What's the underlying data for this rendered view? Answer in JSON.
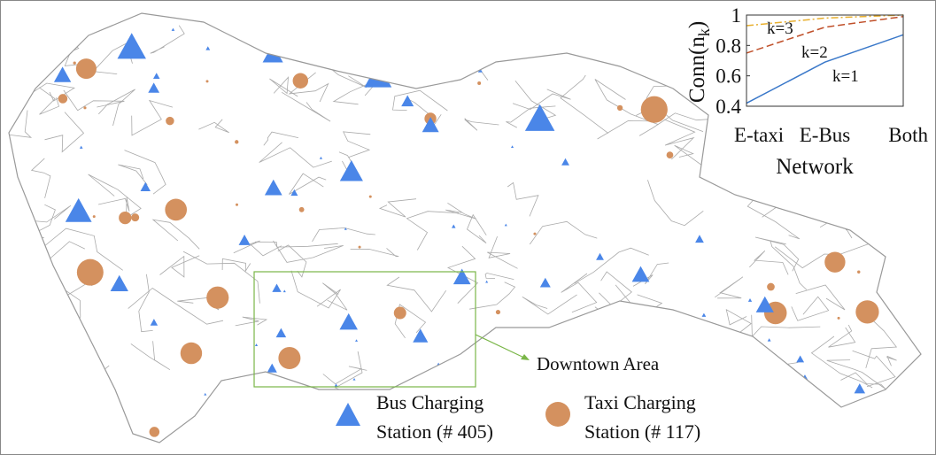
{
  "map": {
    "downtown_label": "Downtown Area",
    "legend": [
      {
        "lines": [
          "Bus Charging",
          "Station (# 405)"
        ]
      },
      {
        "lines": [
          "Taxi Charging",
          "Station (# 117)"
        ]
      }
    ]
  },
  "chart_data": {
    "type": "line",
    "x_label": "Network",
    "y_label": [
      "Conn(n",
      "k",
      ")"
    ],
    "categories": [
      "E-taxi",
      "E-Bus",
      "Both"
    ],
    "series": [
      {
        "name": "k=1",
        "color": "#3a78c9",
        "dash": "solid",
        "values": [
          0.42,
          0.69,
          0.87
        ]
      },
      {
        "name": "k=2",
        "color": "#c0502a",
        "dash": "dashed",
        "values": [
          0.75,
          0.92,
          0.99
        ]
      },
      {
        "name": "k=3",
        "color": "#e8b030",
        "dash": "dashdot",
        "values": [
          0.93,
          0.98,
          1.0
        ]
      }
    ],
    "ylim": [
      0.4,
      1
    ],
    "yticks": [
      0.4,
      0.6,
      0.8,
      1
    ]
  }
}
